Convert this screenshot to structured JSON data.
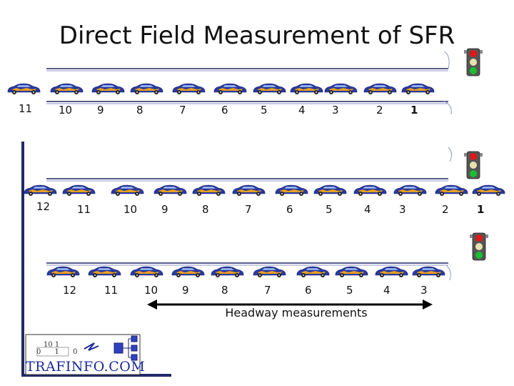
{
  "title": "Direct Field Measurement of SFR",
  "headway_label": "Headway measurements",
  "logo": {
    "text": "TRAFINFO.COM",
    "bits_top": "10 1",
    "bits_bottom": "0 1 0"
  },
  "colors": {
    "signal_red": "#e01818",
    "signal_amber": "#f0c020",
    "signal_green": "#18c030",
    "road": "#202a6a",
    "car_body": "#2a3aa0",
    "car_flame": "#e8a020"
  },
  "rows": [
    {
      "name": "row-1",
      "signal": "green",
      "labels": [
        "11",
        "10",
        "9",
        "8",
        "7",
        "6",
        "5",
        "4",
        "3",
        "2",
        "1"
      ]
    },
    {
      "name": "row-2",
      "signal": "green",
      "labels": [
        "12",
        "11",
        "10",
        "9",
        "8",
        "7",
        "6",
        "5",
        "4",
        "3",
        "2",
        "1"
      ]
    },
    {
      "name": "row-3",
      "signal": "green",
      "labels": [
        "12",
        "11",
        "10",
        "9",
        "8",
        "7",
        "6",
        "5",
        "4",
        "3"
      ]
    }
  ]
}
